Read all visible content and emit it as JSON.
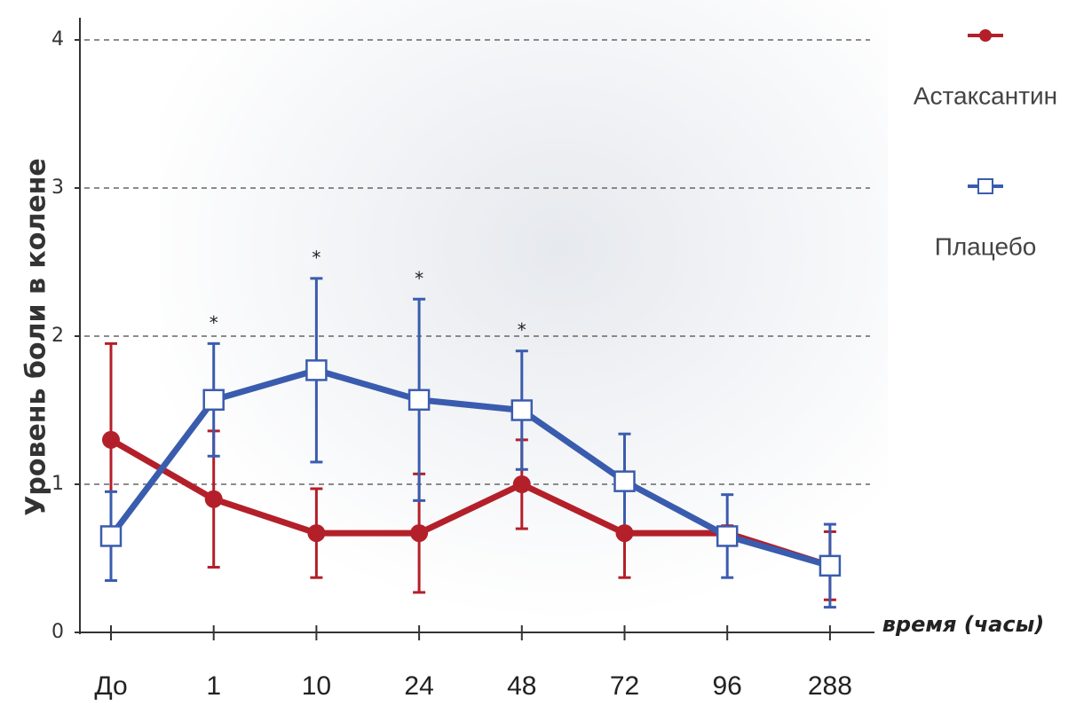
{
  "chart_data": {
    "type": "line",
    "x_label": "время (часы)",
    "y_label": "Уровень боли в колене",
    "categories": [
      "До",
      "1",
      "10",
      "24",
      "48",
      "72",
      "96",
      "288"
    ],
    "ylim": [
      0,
      4
    ],
    "yticks": [
      0,
      1,
      2,
      3,
      4
    ],
    "grid": true,
    "legend": "top-right",
    "significance": [
      null,
      "*",
      "*",
      "*",
      "*",
      null,
      null,
      null
    ],
    "series": [
      {
        "name": "Астаксантин",
        "color": "#b3202a",
        "marker": "circle",
        "values": [
          1.3,
          0.9,
          0.67,
          0.67,
          1.0,
          0.67,
          0.67,
          0.45
        ],
        "errors": [
          0.65,
          0.46,
          0.3,
          0.4,
          0.3,
          0.3,
          0.05,
          0.23
        ]
      },
      {
        "name": "Плацебо",
        "color": "#3a5cae",
        "marker": "square",
        "values": [
          0.65,
          1.57,
          1.77,
          1.57,
          1.5,
          1.02,
          0.65,
          0.45
        ],
        "errors": [
          0.3,
          0.38,
          0.62,
          0.68,
          0.4,
          0.32,
          0.28,
          0.28
        ]
      }
    ]
  }
}
